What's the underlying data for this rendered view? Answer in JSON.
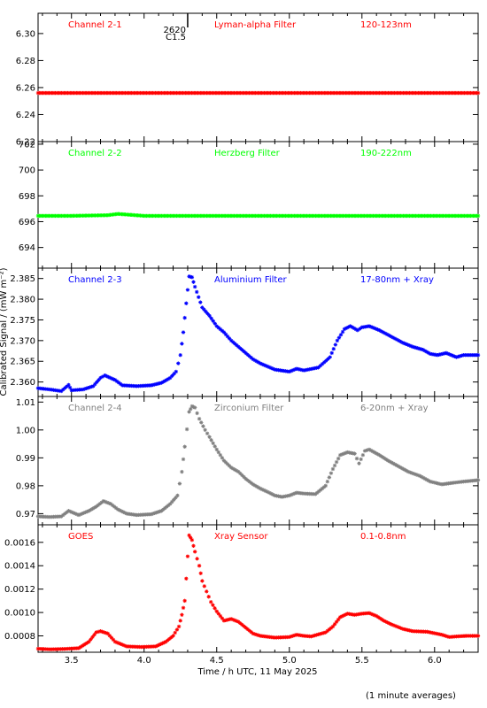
{
  "xaxis": {
    "label": "Time / h UTC, 11 May 2025",
    "range": [
      3.27,
      6.3
    ],
    "ticks": [
      3.5,
      4.0,
      4.5,
      5.0,
      5.5,
      6.0
    ],
    "tick_labels": [
      "3.5",
      "4.0",
      "4.5",
      "5.0",
      "5.5",
      "6.0"
    ]
  },
  "yaxis_label": "Calibrated Signal / (mW m⁻²)",
  "footnote": "(1 minute averages)",
  "flare_marker": {
    "x": 4.3,
    "label_top": "2620",
    "label_bottom": "C1.5"
  },
  "chart_data": [
    {
      "type": "scatter",
      "channel": "Channel 2-1",
      "filter": "Lyman-alpha Filter",
      "band": "120-123nm",
      "color": "#ff0000",
      "ylim": [
        6.22,
        6.315
      ],
      "yticks": [
        6.22,
        6.24,
        6.26,
        6.28,
        6.3
      ],
      "ytick_labels": [
        "6.22",
        "6.24",
        "6.26",
        "6.28",
        "6.30"
      ],
      "points": [
        [
          3.27,
          6.256
        ],
        [
          3.5,
          6.256
        ],
        [
          3.75,
          6.256
        ],
        [
          4.0,
          6.256
        ],
        [
          4.25,
          6.256
        ],
        [
          4.5,
          6.256
        ],
        [
          4.75,
          6.256
        ],
        [
          5.0,
          6.256
        ],
        [
          5.25,
          6.256
        ],
        [
          5.5,
          6.256
        ],
        [
          5.75,
          6.256
        ],
        [
          6.0,
          6.256
        ],
        [
          6.3,
          6.256
        ]
      ]
    },
    {
      "type": "scatter",
      "channel": "Channel 2-2",
      "filter": "Herzberg Filter",
      "band": "190-222nm",
      "color": "#00ff00",
      "ylim": [
        692.4,
        702.2
      ],
      "yticks": [
        694,
        696,
        698,
        700,
        702
      ],
      "ytick_labels": [
        "694",
        "696",
        "698",
        "700",
        "702"
      ],
      "points": [
        [
          3.27,
          696.45
        ],
        [
          3.5,
          696.45
        ],
        [
          3.75,
          696.5
        ],
        [
          3.82,
          696.6
        ],
        [
          4.0,
          696.45
        ],
        [
          4.25,
          696.45
        ],
        [
          4.5,
          696.45
        ],
        [
          4.75,
          696.45
        ],
        [
          5.0,
          696.45
        ],
        [
          5.25,
          696.45
        ],
        [
          5.5,
          696.45
        ],
        [
          5.75,
          696.45
        ],
        [
          6.0,
          696.45
        ],
        [
          6.3,
          696.45
        ]
      ]
    },
    {
      "type": "scatter",
      "channel": "Channel 2-3",
      "filter": "Aluminium Filter",
      "band": "17-80nm + Xray",
      "color": "#0000ff",
      "ylim": [
        2.3565,
        2.3875
      ],
      "yticks": [
        2.36,
        2.365,
        2.37,
        2.375,
        2.38,
        2.385
      ],
      "ytick_labels": [
        "2.360",
        "2.365",
        "2.370",
        "2.375",
        "2.380",
        "2.385"
      ],
      "points": [
        [
          3.27,
          2.3585
        ],
        [
          3.35,
          2.3582
        ],
        [
          3.43,
          2.3578
        ],
        [
          3.48,
          2.3593
        ],
        [
          3.5,
          2.358
        ],
        [
          3.58,
          2.3582
        ],
        [
          3.65,
          2.359
        ],
        [
          3.7,
          2.361
        ],
        [
          3.73,
          2.3616
        ],
        [
          3.78,
          2.3608
        ],
        [
          3.8,
          2.3605
        ],
        [
          3.85,
          2.3592
        ],
        [
          3.95,
          2.359
        ],
        [
          4.05,
          2.3592
        ],
        [
          4.12,
          2.3598
        ],
        [
          4.18,
          2.361
        ],
        [
          4.22,
          2.3625
        ],
        [
          4.25,
          2.3665
        ],
        [
          4.27,
          2.372
        ],
        [
          4.29,
          2.379
        ],
        [
          4.31,
          2.3855
        ],
        [
          4.33,
          2.3853
        ],
        [
          4.35,
          2.383
        ],
        [
          4.4,
          2.378
        ],
        [
          4.45,
          2.376
        ],
        [
          4.5,
          2.3735
        ],
        [
          4.55,
          2.372
        ],
        [
          4.6,
          2.37
        ],
        [
          4.65,
          2.3685
        ],
        [
          4.7,
          2.367
        ],
        [
          4.75,
          2.3655
        ],
        [
          4.8,
          2.3645
        ],
        [
          4.9,
          2.363
        ],
        [
          5.0,
          2.3625
        ],
        [
          5.05,
          2.3632
        ],
        [
          5.1,
          2.3628
        ],
        [
          5.2,
          2.3635
        ],
        [
          5.28,
          2.366
        ],
        [
          5.33,
          2.37
        ],
        [
          5.38,
          2.3728
        ],
        [
          5.42,
          2.3735
        ],
        [
          5.47,
          2.3725
        ],
        [
          5.5,
          2.3732
        ],
        [
          5.55,
          2.3735
        ],
        [
          5.62,
          2.3725
        ],
        [
          5.7,
          2.371
        ],
        [
          5.78,
          2.3695
        ],
        [
          5.85,
          2.3685
        ],
        [
          5.92,
          2.3678
        ],
        [
          5.97,
          2.3668
        ],
        [
          6.02,
          2.3665
        ],
        [
          6.08,
          2.367
        ],
        [
          6.15,
          2.366
        ],
        [
          6.2,
          2.3665
        ],
        [
          6.3,
          2.3665
        ]
      ]
    },
    {
      "type": "scatter",
      "channel": "Channel 2-4",
      "filter": "Zirconium Filter",
      "band": "6-20nm + Xray",
      "color": "#808080",
      "ylim": [
        0.966,
        1.012
      ],
      "yticks": [
        0.97,
        0.98,
        0.99,
        1.0,
        1.01
      ],
      "ytick_labels": [
        "0.97",
        "0.98",
        "0.99",
        "1.00",
        "1.01"
      ],
      "points": [
        [
          3.27,
          0.969
        ],
        [
          3.35,
          0.9688
        ],
        [
          3.43,
          0.969
        ],
        [
          3.48,
          0.971
        ],
        [
          3.55,
          0.9695
        ],
        [
          3.62,
          0.971
        ],
        [
          3.67,
          0.9725
        ],
        [
          3.72,
          0.9745
        ],
        [
          3.77,
          0.9735
        ],
        [
          3.82,
          0.9715
        ],
        [
          3.88,
          0.97
        ],
        [
          3.95,
          0.9695
        ],
        [
          4.05,
          0.9698
        ],
        [
          4.12,
          0.971
        ],
        [
          4.18,
          0.9735
        ],
        [
          4.23,
          0.9765
        ],
        [
          4.26,
          0.985
        ],
        [
          4.28,
          0.994
        ],
        [
          4.31,
          1.0065
        ],
        [
          4.33,
          1.0085
        ],
        [
          4.35,
          1.008
        ],
        [
          4.38,
          1.004
        ],
        [
          4.42,
          1.0
        ],
        [
          4.45,
          0.9975
        ],
        [
          4.5,
          0.993
        ],
        [
          4.55,
          0.989
        ],
        [
          4.6,
          0.9865
        ],
        [
          4.65,
          0.985
        ],
        [
          4.7,
          0.9825
        ],
        [
          4.75,
          0.9805
        ],
        [
          4.8,
          0.979
        ],
        [
          4.85,
          0.9778
        ],
        [
          4.9,
          0.9765
        ],
        [
          4.95,
          0.976
        ],
        [
          5.0,
          0.9765
        ],
        [
          5.05,
          0.9775
        ],
        [
          5.1,
          0.9772
        ],
        [
          5.18,
          0.977
        ],
        [
          5.25,
          0.98
        ],
        [
          5.3,
          0.986
        ],
        [
          5.35,
          0.991
        ],
        [
          5.4,
          0.992
        ],
        [
          5.45,
          0.9915
        ],
        [
          5.48,
          0.988
        ],
        [
          5.52,
          0.9925
        ],
        [
          5.55,
          0.993
        ],
        [
          5.62,
          0.991
        ],
        [
          5.68,
          0.989
        ],
        [
          5.75,
          0.987
        ],
        [
          5.82,
          0.985
        ],
        [
          5.9,
          0.9835
        ],
        [
          5.97,
          0.9815
        ],
        [
          6.05,
          0.9805
        ],
        [
          6.12,
          0.981
        ],
        [
          6.2,
          0.9815
        ],
        [
          6.3,
          0.982
        ]
      ]
    },
    {
      "type": "scatter",
      "channel": "GOES",
      "filter": "Xray Sensor",
      "band": "0.1-0.8nm",
      "color": "#ff0000",
      "ylim": [
        0.00066,
        0.00175
      ],
      "yticks": [
        0.0008,
        0.001,
        0.0012,
        0.0014,
        0.0016
      ],
      "ytick_labels": [
        "0.0008",
        "0.0010",
        "0.0012",
        "0.0014",
        "0.0016"
      ],
      "points": [
        [
          3.27,
          0.00069
        ],
        [
          3.35,
          0.000685
        ],
        [
          3.45,
          0.000688
        ],
        [
          3.55,
          0.000695
        ],
        [
          3.62,
          0.00075
        ],
        [
          3.67,
          0.00083
        ],
        [
          3.7,
          0.00084
        ],
        [
          3.75,
          0.00082
        ],
        [
          3.8,
          0.00075
        ],
        [
          3.88,
          0.00071
        ],
        [
          3.98,
          0.000705
        ],
        [
          4.08,
          0.00071
        ],
        [
          4.15,
          0.00075
        ],
        [
          4.2,
          0.0008
        ],
        [
          4.24,
          0.00088
        ],
        [
          4.26,
          0.00098
        ],
        [
          4.28,
          0.0011
        ],
        [
          4.3,
          0.00148
        ],
        [
          4.31,
          0.00166
        ],
        [
          4.33,
          0.00162
        ],
        [
          4.35,
          0.00152
        ],
        [
          4.38,
          0.0014
        ],
        [
          4.4,
          0.00127
        ],
        [
          4.43,
          0.00118
        ],
        [
          4.46,
          0.00109
        ],
        [
          4.5,
          0.00101
        ],
        [
          4.55,
          0.00093
        ],
        [
          4.6,
          0.000945
        ],
        [
          4.65,
          0.00092
        ],
        [
          4.7,
          0.00087
        ],
        [
          4.75,
          0.00082
        ],
        [
          4.8,
          0.0008
        ],
        [
          4.9,
          0.000785
        ],
        [
          5.0,
          0.00079
        ],
        [
          5.05,
          0.00081
        ],
        [
          5.1,
          0.0008
        ],
        [
          5.15,
          0.000795
        ],
        [
          5.25,
          0.00083
        ],
        [
          5.3,
          0.00088
        ],
        [
          5.35,
          0.00096
        ],
        [
          5.4,
          0.00099
        ],
        [
          5.45,
          0.00098
        ],
        [
          5.5,
          0.00099
        ],
        [
          5.55,
          0.000995
        ],
        [
          5.6,
          0.00097
        ],
        [
          5.65,
          0.00093
        ],
        [
          5.7,
          0.0009
        ],
        [
          5.78,
          0.00086
        ],
        [
          5.85,
          0.00084
        ],
        [
          5.95,
          0.000835
        ],
        [
          6.05,
          0.00081
        ],
        [
          6.1,
          0.00079
        ],
        [
          6.15,
          0.000795
        ],
        [
          6.22,
          0.0008
        ],
        [
          6.3,
          0.0008
        ]
      ]
    }
  ]
}
